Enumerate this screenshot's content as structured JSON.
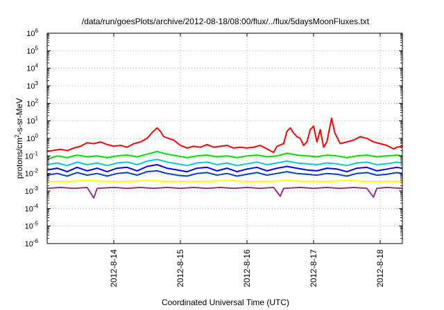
{
  "chart_data": {
    "type": "line",
    "title": "/data/run/goesPlots/archive/2012-08-18/08:00/flux/../flux/5daysMoonFluxes.txt",
    "xlabel": "Coordinated Universal Time (UTC)",
    "ylabel": {
      "pre": "protons/cm",
      "sup": "2",
      "post": "-s-sr-MeV"
    },
    "y_scale": "log",
    "ylim_exp": [
      -6,
      6
    ],
    "ytick_base": "10",
    "ytick_exps": [
      "-6",
      "-5",
      "-4",
      "-3",
      "-2",
      "-1",
      "0",
      "1",
      "2",
      "3",
      "4",
      "5",
      "6"
    ],
    "x_start": "2012-08-13 00:00",
    "x_end": "2012-08-18 08:00",
    "x_ticks": [
      "2012-8-14",
      "2012-8-15",
      "2012-8-16",
      "2012-8-17",
      "2012-8-18"
    ],
    "grid": true,
    "series": [
      {
        "color": "#ff0000",
        "values_log10": [
          [
            13.0,
            -0.75
          ],
          [
            13.1,
            -0.68
          ],
          [
            13.2,
            -0.62
          ],
          [
            13.3,
            -0.7
          ],
          [
            13.4,
            -0.55
          ],
          [
            13.5,
            -0.45
          ],
          [
            13.6,
            -0.25
          ],
          [
            13.7,
            -0.3
          ],
          [
            13.8,
            -0.2
          ],
          [
            13.9,
            -0.35
          ],
          [
            14.0,
            -0.45
          ],
          [
            14.1,
            -0.4
          ],
          [
            14.2,
            -0.5
          ],
          [
            14.3,
            -0.3
          ],
          [
            14.4,
            -0.2
          ],
          [
            14.5,
            0.0
          ],
          [
            14.58,
            0.35
          ],
          [
            14.65,
            0.6
          ],
          [
            14.7,
            0.4
          ],
          [
            14.75,
            0.1
          ],
          [
            14.82,
            0.0
          ],
          [
            14.9,
            -0.1
          ],
          [
            15.0,
            -0.4
          ],
          [
            15.1,
            -0.55
          ],
          [
            15.2,
            -0.45
          ],
          [
            15.3,
            -0.5
          ],
          [
            15.4,
            -0.35
          ],
          [
            15.5,
            -0.5
          ],
          [
            15.6,
            -0.45
          ],
          [
            15.7,
            -0.4
          ],
          [
            15.8,
            -0.55
          ],
          [
            15.9,
            -0.5
          ],
          [
            16.0,
            -0.55
          ],
          [
            16.1,
            -0.5
          ],
          [
            16.2,
            -0.4
          ],
          [
            16.3,
            -0.6
          ],
          [
            16.4,
            -0.8
          ],
          [
            16.45,
            -0.45
          ],
          [
            16.55,
            -0.3
          ],
          [
            16.6,
            0.4
          ],
          [
            16.65,
            0.6
          ],
          [
            16.7,
            0.3
          ],
          [
            16.75,
            0.1
          ],
          [
            16.8,
            0.0
          ],
          [
            16.85,
            -0.4
          ],
          [
            16.9,
            -0.2
          ],
          [
            16.95,
            0.5
          ],
          [
            17.0,
            0.7
          ],
          [
            17.05,
            -0.2
          ],
          [
            17.1,
            0.5
          ],
          [
            17.15,
            -0.5
          ],
          [
            17.2,
            -0.2
          ],
          [
            17.27,
            1.15
          ],
          [
            17.32,
            0.3
          ],
          [
            17.4,
            -0.3
          ],
          [
            17.5,
            -0.2
          ],
          [
            17.6,
            -0.1
          ],
          [
            17.7,
            0.1
          ],
          [
            17.8,
            0.0
          ],
          [
            17.9,
            -0.2
          ],
          [
            18.0,
            -0.3
          ],
          [
            18.1,
            -0.4
          ],
          [
            18.2,
            -0.6
          ],
          [
            18.25,
            -0.5
          ],
          [
            18.33,
            -0.45
          ]
        ]
      },
      {
        "color": "#00e000",
        "values_log10": [
          [
            13.0,
            -1.2
          ],
          [
            13.15,
            -1.0
          ],
          [
            13.3,
            -1.1
          ],
          [
            13.45,
            -0.95
          ],
          [
            13.6,
            -1.05
          ],
          [
            13.75,
            -1.0
          ],
          [
            13.9,
            -1.1
          ],
          [
            14.05,
            -1.0
          ],
          [
            14.2,
            -0.95
          ],
          [
            14.35,
            -1.05
          ],
          [
            14.5,
            -0.9
          ],
          [
            14.65,
            -0.75
          ],
          [
            14.8,
            -0.9
          ],
          [
            14.95,
            -1.0
          ],
          [
            15.1,
            -1.1
          ],
          [
            15.25,
            -1.0
          ],
          [
            15.4,
            -0.95
          ],
          [
            15.55,
            -1.05
          ],
          [
            15.7,
            -1.0
          ],
          [
            15.85,
            -1.1
          ],
          [
            16.0,
            -1.0
          ],
          [
            16.15,
            -0.95
          ],
          [
            16.3,
            -1.05
          ],
          [
            16.45,
            -1.0
          ],
          [
            16.6,
            -0.85
          ],
          [
            16.75,
            -0.95
          ],
          [
            16.9,
            -1.0
          ],
          [
            17.05,
            -1.05
          ],
          [
            17.2,
            -0.95
          ],
          [
            17.35,
            -1.0
          ],
          [
            17.5,
            -1.1
          ],
          [
            17.65,
            -1.0
          ],
          [
            17.8,
            -0.95
          ],
          [
            17.95,
            -1.05
          ],
          [
            18.1,
            -1.0
          ],
          [
            18.25,
            -0.95
          ],
          [
            18.33,
            -1.0
          ]
        ]
      },
      {
        "color": "#00cccc",
        "values_log10": [
          [
            13.0,
            -1.5
          ],
          [
            13.15,
            -1.4
          ],
          [
            13.3,
            -1.55
          ],
          [
            13.45,
            -1.35
          ],
          [
            13.6,
            -1.5
          ],
          [
            13.75,
            -1.4
          ],
          [
            13.9,
            -1.55
          ],
          [
            14.05,
            -1.4
          ],
          [
            14.2,
            -1.35
          ],
          [
            14.35,
            -1.5
          ],
          [
            14.5,
            -1.3
          ],
          [
            14.65,
            -1.2
          ],
          [
            14.8,
            -1.35
          ],
          [
            14.95,
            -1.45
          ],
          [
            15.1,
            -1.55
          ],
          [
            15.25,
            -1.4
          ],
          [
            15.4,
            -1.35
          ],
          [
            15.55,
            -1.5
          ],
          [
            15.7,
            -1.4
          ],
          [
            15.85,
            -1.55
          ],
          [
            16.0,
            -1.45
          ],
          [
            16.15,
            -1.35
          ],
          [
            16.3,
            -1.5
          ],
          [
            16.45,
            -1.4
          ],
          [
            16.6,
            -1.3
          ],
          [
            16.75,
            -1.4
          ],
          [
            16.9,
            -1.45
          ],
          [
            17.05,
            -1.5
          ],
          [
            17.2,
            -1.4
          ],
          [
            17.35,
            -1.45
          ],
          [
            17.5,
            -1.55
          ],
          [
            17.65,
            -1.4
          ],
          [
            17.8,
            -1.35
          ],
          [
            17.95,
            -1.5
          ],
          [
            18.1,
            -1.45
          ],
          [
            18.25,
            -1.35
          ],
          [
            18.33,
            -1.4
          ]
        ]
      },
      {
        "color": "#0000ff",
        "values_log10": [
          [
            13.0,
            -1.8
          ],
          [
            13.15,
            -1.7
          ],
          [
            13.3,
            -1.9
          ],
          [
            13.45,
            -1.65
          ],
          [
            13.6,
            -1.85
          ],
          [
            13.75,
            -1.7
          ],
          [
            13.9,
            -1.9
          ],
          [
            14.05,
            -1.7
          ],
          [
            14.2,
            -1.65
          ],
          [
            14.35,
            -1.85
          ],
          [
            14.5,
            -1.6
          ],
          [
            14.65,
            -1.5
          ],
          [
            14.8,
            -1.7
          ],
          [
            14.95,
            -1.8
          ],
          [
            15.1,
            -1.9
          ],
          [
            15.25,
            -1.7
          ],
          [
            15.4,
            -1.65
          ],
          [
            15.55,
            -1.85
          ],
          [
            15.7,
            -1.7
          ],
          [
            15.85,
            -1.9
          ],
          [
            16.0,
            -1.75
          ],
          [
            16.15,
            -1.65
          ],
          [
            16.3,
            -1.85
          ],
          [
            16.45,
            -1.7
          ],
          [
            16.6,
            -1.6
          ],
          [
            16.75,
            -1.7
          ],
          [
            16.9,
            -1.8
          ],
          [
            17.05,
            -1.85
          ],
          [
            17.2,
            -1.7
          ],
          [
            17.35,
            -1.75
          ],
          [
            17.5,
            -1.9
          ],
          [
            17.65,
            -1.7
          ],
          [
            17.8,
            -1.65
          ],
          [
            17.95,
            -1.85
          ],
          [
            18.1,
            -1.75
          ],
          [
            18.25,
            -1.65
          ],
          [
            18.33,
            -1.7
          ]
        ]
      },
      {
        "color": "#0044bb",
        "values_log10": [
          [
            13.0,
            -2.1
          ],
          [
            13.15,
            -2.0
          ],
          [
            13.3,
            -2.15
          ],
          [
            13.45,
            -1.95
          ],
          [
            13.6,
            -2.1
          ],
          [
            13.75,
            -2.0
          ],
          [
            13.9,
            -2.15
          ],
          [
            14.05,
            -2.0
          ],
          [
            14.2,
            -1.95
          ],
          [
            14.35,
            -2.1
          ],
          [
            14.5,
            -1.9
          ],
          [
            14.65,
            -1.85
          ],
          [
            14.8,
            -2.0
          ],
          [
            14.95,
            -2.1
          ],
          [
            15.1,
            -2.15
          ],
          [
            15.25,
            -2.0
          ],
          [
            15.4,
            -1.95
          ],
          [
            15.55,
            -2.1
          ],
          [
            15.7,
            -2.0
          ],
          [
            15.85,
            -2.15
          ],
          [
            16.0,
            -2.05
          ],
          [
            16.15,
            -1.95
          ],
          [
            16.3,
            -2.1
          ],
          [
            16.45,
            -2.0
          ],
          [
            16.6,
            -1.9
          ],
          [
            16.75,
            -2.0
          ],
          [
            16.9,
            -2.05
          ],
          [
            17.05,
            -2.1
          ],
          [
            17.2,
            -2.0
          ],
          [
            17.35,
            -2.05
          ],
          [
            17.5,
            -2.15
          ],
          [
            17.65,
            -2.0
          ],
          [
            17.8,
            -1.95
          ],
          [
            17.95,
            -2.1
          ],
          [
            18.1,
            -2.05
          ],
          [
            18.25,
            -1.95
          ],
          [
            18.33,
            -2.0
          ]
        ]
      },
      {
        "color": "#ffff00",
        "values_log10": [
          [
            13.0,
            -2.45
          ],
          [
            13.3,
            -2.45
          ],
          [
            13.6,
            -2.4
          ],
          [
            13.9,
            -2.45
          ],
          [
            14.2,
            -2.45
          ],
          [
            14.5,
            -2.4
          ],
          [
            14.8,
            -2.45
          ],
          [
            15.1,
            -2.45
          ],
          [
            15.4,
            -2.45
          ],
          [
            15.7,
            -2.4
          ],
          [
            16.0,
            -2.45
          ],
          [
            16.3,
            -2.45
          ],
          [
            16.6,
            -2.4
          ],
          [
            16.9,
            -2.45
          ],
          [
            17.2,
            -2.45
          ],
          [
            17.5,
            -2.4
          ],
          [
            17.8,
            -2.45
          ],
          [
            18.1,
            -2.45
          ],
          [
            18.33,
            -2.45
          ]
        ]
      },
      {
        "color": "#993377",
        "values_log10": [
          [
            13.0,
            -2.85
          ],
          [
            13.2,
            -2.8
          ],
          [
            13.4,
            -2.85
          ],
          [
            13.6,
            -2.8
          ],
          [
            13.7,
            -3.4
          ],
          [
            13.75,
            -2.85
          ],
          [
            14.0,
            -2.8
          ],
          [
            14.2,
            -2.85
          ],
          [
            14.4,
            -2.8
          ],
          [
            14.6,
            -2.85
          ],
          [
            14.8,
            -2.8
          ],
          [
            15.0,
            -2.85
          ],
          [
            15.2,
            -2.8
          ],
          [
            15.4,
            -2.85
          ],
          [
            15.6,
            -2.8
          ],
          [
            15.8,
            -2.85
          ],
          [
            16.0,
            -2.8
          ],
          [
            16.2,
            -2.85
          ],
          [
            16.4,
            -2.8
          ],
          [
            16.5,
            -3.3
          ],
          [
            16.55,
            -2.85
          ],
          [
            16.8,
            -2.8
          ],
          [
            17.0,
            -2.85
          ],
          [
            17.2,
            -2.8
          ],
          [
            17.4,
            -2.85
          ],
          [
            17.6,
            -2.8
          ],
          [
            17.8,
            -2.85
          ],
          [
            17.9,
            -3.35
          ],
          [
            17.95,
            -2.85
          ],
          [
            18.1,
            -2.8
          ],
          [
            18.33,
            -2.85
          ]
        ]
      }
    ]
  }
}
